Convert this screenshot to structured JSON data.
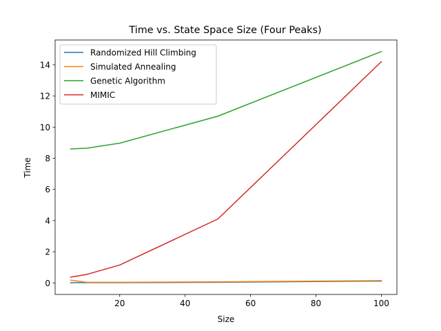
{
  "chart_data": {
    "type": "line",
    "title": "Time vs. State Space Size (Four Peaks)",
    "xlabel": "Size",
    "ylabel": "Time",
    "xlim": [
      0.25,
      104.75
    ],
    "ylim": [
      -0.74,
      15.59
    ],
    "xticks": [
      20,
      40,
      60,
      80,
      100
    ],
    "yticks": [
      0,
      2,
      4,
      6,
      8,
      10,
      12,
      14
    ],
    "grid": false,
    "legend_position": "top-left",
    "x": [
      5,
      10,
      20,
      50,
      100
    ],
    "series": [
      {
        "name": "Randomized Hill Climbing",
        "color": "#1f77b4",
        "values": [
          0.02,
          0.02,
          0.02,
          0.04,
          0.12
        ]
      },
      {
        "name": "Simulated Annealing",
        "color": "#ff7f0e",
        "values": [
          0.18,
          0.04,
          0.04,
          0.07,
          0.15
        ]
      },
      {
        "name": "Genetic Algorithm",
        "color": "#2ca02c",
        "values": [
          8.6,
          8.65,
          8.97,
          10.7,
          14.85
        ]
      },
      {
        "name": "MIMIC",
        "color": "#d62728",
        "values": [
          0.37,
          0.55,
          1.15,
          4.1,
          14.2
        ]
      }
    ]
  }
}
